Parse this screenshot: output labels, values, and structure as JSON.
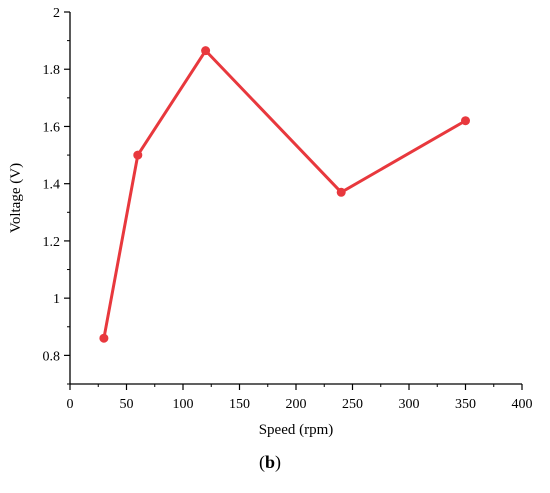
{
  "chart_data": {
    "type": "line",
    "xlabel": "Speed (rpm)",
    "ylabel": "Voltage (V)",
    "xlim": [
      0,
      400
    ],
    "ylim": [
      0.7,
      2.0
    ],
    "xticks": [
      0,
      50,
      100,
      150,
      200,
      250,
      300,
      350,
      400
    ],
    "xtick_labels": [
      "0",
      "50",
      "100",
      "150",
      "200",
      "250",
      "300",
      "350",
      "400"
    ],
    "yticks": [
      0.8,
      1.0,
      1.2,
      1.4,
      1.6,
      1.8,
      2.0
    ],
    "ytick_labels": [
      "0.8",
      "1",
      "1.2",
      "1.4",
      "1.6",
      "1.8",
      "2"
    ],
    "grid": false,
    "series": [
      {
        "color": "#e8383d",
        "marker": "circle",
        "x": [
          30,
          60,
          120,
          240,
          350
        ],
        "y": [
          0.86,
          1.5,
          1.865,
          1.37,
          1.62
        ]
      }
    ]
  },
  "caption": {
    "open": "(",
    "label": "b",
    "close": ")"
  }
}
